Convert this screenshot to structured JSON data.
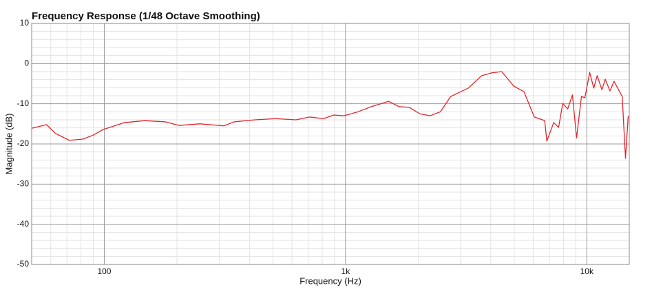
{
  "chart_data": {
    "type": "line",
    "title": "Frequency Response (1/48 Octave Smoothing)",
    "xlabel": "Frequency (Hz)",
    "ylabel": "Magnitude (dB)",
    "x": [
      50,
      55,
      57.6,
      62.8,
      71.6,
      81.6,
      90,
      99,
      121,
      147,
      179,
      204,
      249,
      313,
      345,
      421,
      512,
      623,
      710,
      811,
      894,
      985,
      1126,
      1281,
      1510,
      1664,
      1839,
      2031,
      2240,
      2472,
      2728,
      3227,
      3668,
      4040,
      4438,
      4980,
      5490,
      6060,
      6690,
      6830,
      7290,
      7640,
      7950,
      8330,
      8720,
      9070,
      9500,
      9820,
      10280,
      10690,
      11040,
      11550,
      11930,
      12470,
      12970,
      14020,
      14470,
      14850
    ],
    "values": [
      -16.1,
      -15.5,
      -15.2,
      -17.4,
      -19.1,
      -18.8,
      -17.8,
      -16.4,
      -14.7,
      -14.2,
      -14.5,
      -15.4,
      -15.0,
      -15.5,
      -14.5,
      -14.0,
      -13.7,
      -14.0,
      -13.3,
      -13.7,
      -12.8,
      -13.0,
      -12.0,
      -10.7,
      -9.4,
      -10.7,
      -10.9,
      -12.5,
      -13.0,
      -12.0,
      -8.2,
      -6.1,
      -3.0,
      -2.3,
      -2.0,
      -5.6,
      -7.0,
      -13.3,
      -14.2,
      -19.3,
      -14.7,
      -15.9,
      -9.9,
      -11.3,
      -7.8,
      -18.5,
      -8.2,
      -8.5,
      -2.2,
      -6.1,
      -3.0,
      -6.5,
      -3.9,
      -6.8,
      -4.4,
      -8.2,
      -23.6,
      -13.0
    ],
    "color": "#e3242b",
    "xscale": "log",
    "xlim": [
      50,
      15000
    ],
    "ylim": [
      -50,
      10
    ],
    "xticks": [
      100,
      {
        "value": 1000,
        "label": "1k"
      },
      {
        "value": 10000,
        "label": "10k"
      }
    ],
    "yticks": [
      -50,
      -40,
      -30,
      -20,
      -10,
      0,
      10
    ],
    "xminor": [
      60,
      70,
      80,
      90,
      200,
      300,
      400,
      500,
      600,
      700,
      800,
      900,
      2000,
      3000,
      4000,
      5000,
      6000,
      7000,
      8000,
      9000
    ],
    "yminor": [
      -48,
      -46,
      -44,
      -42,
      -38,
      -36,
      -34,
      -32,
      -28,
      -26,
      -24,
      -22,
      -18,
      -16,
      -14,
      -12,
      -8,
      -6,
      -4,
      -2,
      2,
      4,
      6,
      8
    ],
    "grid": true
  }
}
